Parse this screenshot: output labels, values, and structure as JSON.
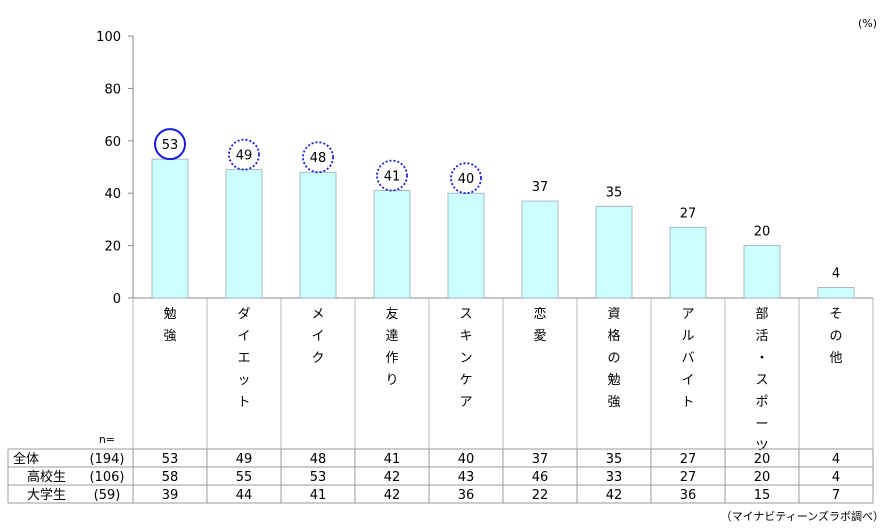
{
  "chart_data": {
    "type": "bar",
    "unit": "(%)",
    "ylim": [
      0,
      100
    ],
    "yticks": [
      0,
      20,
      40,
      60,
      80,
      100
    ],
    "categories": [
      "勉強",
      "ダイエット",
      "メイク",
      "友達作り",
      "スキンケア",
      "恋愛",
      "資格の勉強",
      "アルバイト",
      "部活・スポーツ",
      "その他"
    ],
    "category_chars": [
      [
        "勉",
        "強"
      ],
      [
        "ダ",
        "イ",
        "エ",
        "ッ",
        "ト"
      ],
      [
        "メ",
        "イ",
        "ク"
      ],
      [
        "友",
        "達",
        "作",
        "り"
      ],
      [
        "ス",
        "キ",
        "ン",
        "ケ",
        "ア"
      ],
      [
        "恋",
        "愛"
      ],
      [
        "資",
        "格",
        "の",
        "勉",
        "強"
      ],
      [
        "ア",
        "ル",
        "バ",
        "イ",
        "ト"
      ],
      [
        "部",
        "活",
        "・",
        "ス",
        "ポ",
        "ー",
        "ツ"
      ],
      [
        "そ",
        "の",
        "他"
      ]
    ],
    "values": [
      53,
      49,
      48,
      41,
      40,
      37,
      35,
      27,
      20,
      4
    ],
    "highlight": [
      "solid",
      "dotted",
      "dotted",
      "dotted",
      "dotted",
      "none",
      "none",
      "none",
      "none",
      "none"
    ],
    "bar_color": "#ccffff",
    "highlight_color": "#1a1adc",
    "table": {
      "n_label": "n=",
      "rows": [
        {
          "label": "全体",
          "n": "(194)",
          "values": [
            53,
            49,
            48,
            41,
            40,
            37,
            35,
            27,
            20,
            4
          ]
        },
        {
          "label": "高校生",
          "n": "(106)",
          "values": [
            58,
            55,
            53,
            42,
            43,
            46,
            33,
            27,
            20,
            4
          ]
        },
        {
          "label": "大学生",
          "n": "(59)",
          "values": [
            39,
            44,
            41,
            42,
            36,
            22,
            42,
            36,
            15,
            7
          ]
        }
      ]
    },
    "source": "（マイナビティーンズラボ調べ）"
  }
}
